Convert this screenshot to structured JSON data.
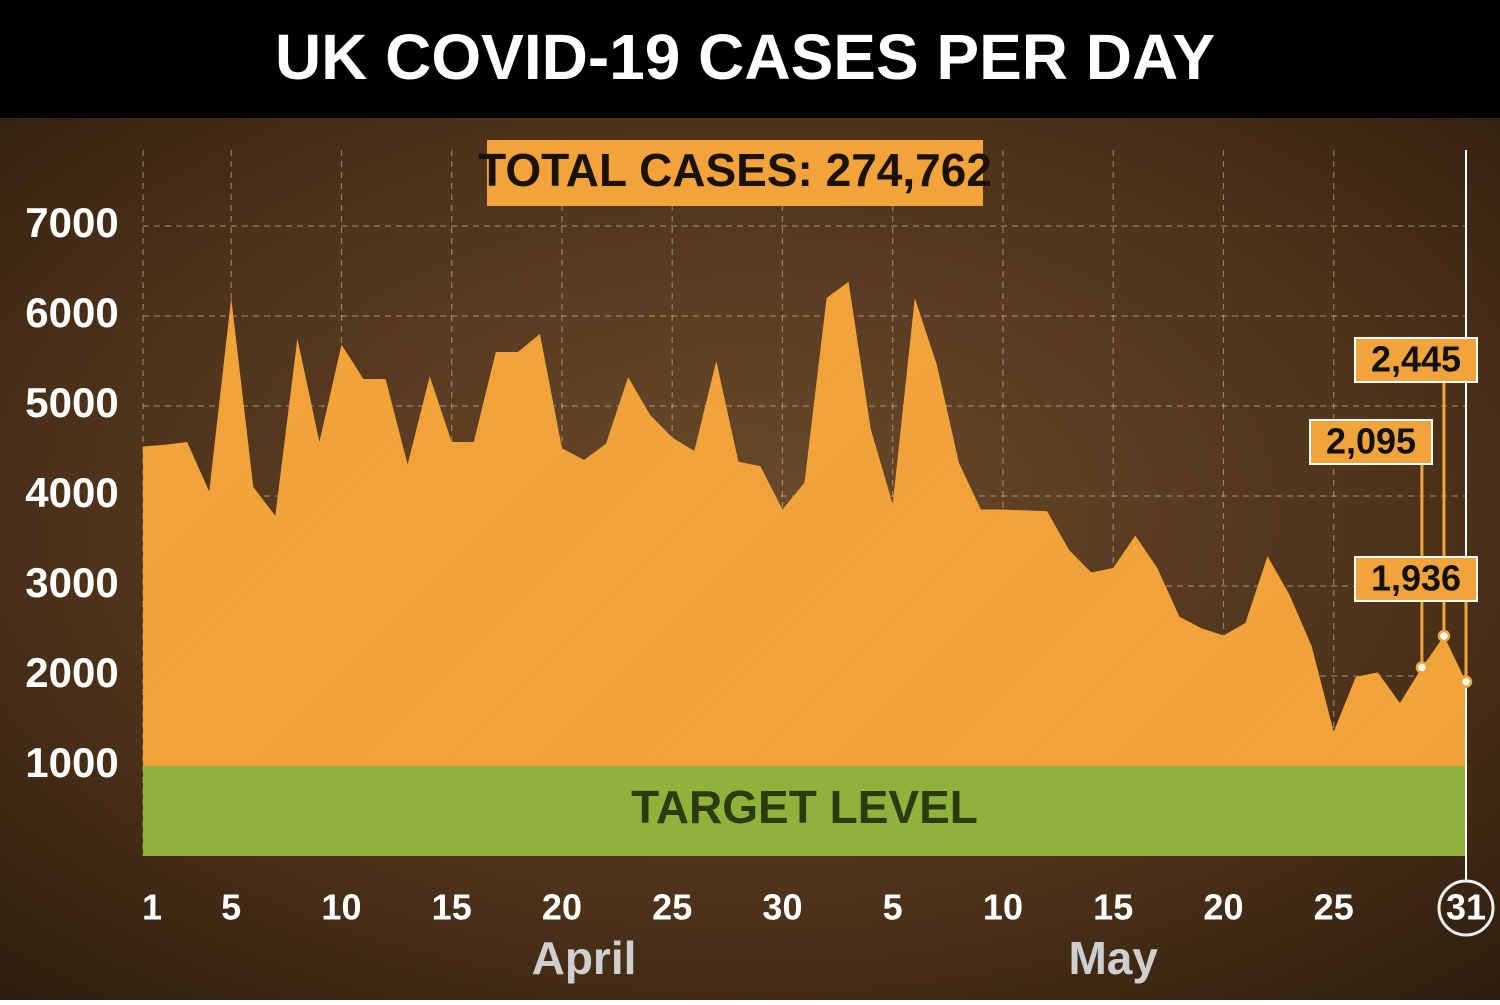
{
  "chart_data": {
    "type": "area",
    "title": "UK COVID-19 CASES PER DAY",
    "annotations": {
      "total": "TOTAL CASES: 274,762",
      "months": [
        {
          "label": "April",
          "at": 20
        },
        {
          "label": "May",
          "at": 44
        }
      ]
    },
    "target": {
      "label": "TARGET LEVEL",
      "from": 0,
      "to": 1000,
      "color": "#8fb23c"
    },
    "categories": [
      "1",
      null,
      null,
      null,
      "5",
      null,
      null,
      null,
      null,
      "10",
      null,
      null,
      null,
      null,
      "15",
      null,
      null,
      null,
      null,
      "20",
      null,
      null,
      null,
      null,
      "25",
      null,
      null,
      null,
      null,
      "30",
      null,
      null,
      null,
      null,
      "5",
      null,
      null,
      null,
      null,
      "10",
      null,
      null,
      null,
      null,
      "15",
      null,
      null,
      null,
      null,
      "20",
      null,
      null,
      null,
      null,
      "25",
      null,
      null,
      null,
      null,
      null,
      "31"
    ],
    "values": [
      4550,
      4570,
      4600,
      4050,
      6200,
      4100,
      3780,
      5750,
      4600,
      5680,
      5300,
      5300,
      4350,
      5330,
      4600,
      4600,
      5600,
      5600,
      5800,
      4530,
      4400,
      4580,
      5320,
      4900,
      4650,
      4500,
      5500,
      4380,
      4330,
      3850,
      4150,
      6200,
      6380,
      4750,
      3910,
      6200,
      5460,
      4370,
      3850,
      3850,
      3840,
      3830,
      3400,
      3150,
      3200,
      3560,
      3200,
      2660,
      2530,
      2450,
      2590,
      3330,
      2900,
      2330,
      1380,
      1990,
      2040,
      1700,
      2095,
      2445,
      1936
    ],
    "value_labels": [
      null,
      null,
      null,
      null,
      null,
      null,
      null,
      null,
      null,
      null,
      null,
      null,
      null,
      null,
      null,
      null,
      null,
      null,
      null,
      null,
      null,
      null,
      null,
      null,
      null,
      null,
      null,
      null,
      null,
      null,
      null,
      null,
      null,
      null,
      null,
      null,
      null,
      null,
      null,
      null,
      null,
      null,
      null,
      null,
      null,
      null,
      null,
      null,
      null,
      null,
      null,
      null,
      null,
      null,
      null,
      null,
      null,
      null,
      "2,095",
      "2,445",
      "1,936"
    ],
    "color": "#f2a33a",
    "ylim": [
      0,
      7800
    ],
    "yticks": [
      {
        "value": 1000,
        "label": "1000"
      },
      2000,
      3000,
      4000,
      5000,
      6000,
      7000
    ],
    "grid": true
  }
}
